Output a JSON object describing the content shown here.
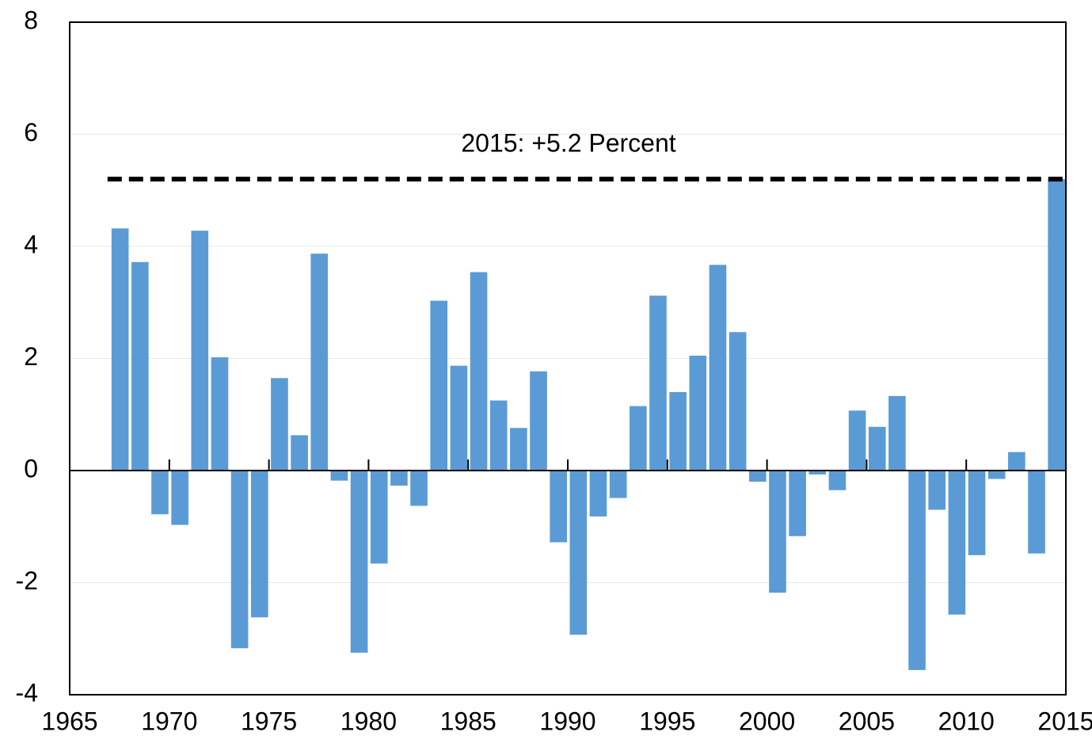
{
  "chart_data": {
    "type": "bar",
    "x": [
      1968,
      1969,
      1970,
      1971,
      1972,
      1973,
      1974,
      1975,
      1976,
      1977,
      1978,
      1979,
      1980,
      1981,
      1982,
      1983,
      1984,
      1985,
      1986,
      1987,
      1988,
      1989,
      1990,
      1991,
      1992,
      1993,
      1994,
      1995,
      1996,
      1997,
      1998,
      1999,
      2000,
      2001,
      2002,
      2003,
      2004,
      2005,
      2006,
      2007,
      2008,
      2009,
      2010,
      2011,
      2012,
      2013,
      2014,
      2015
    ],
    "values": [
      4.32,
      3.72,
      -0.78,
      -0.97,
      4.28,
      2.02,
      -3.17,
      -2.62,
      1.65,
      0.63,
      3.87,
      -0.18,
      -3.25,
      -1.66,
      -0.27,
      -0.63,
      3.03,
      1.87,
      3.54,
      1.25,
      0.76,
      1.77,
      -1.28,
      -2.93,
      -0.82,
      -0.49,
      1.15,
      3.12,
      1.4,
      2.05,
      3.67,
      2.47,
      -0.2,
      -2.18,
      -1.17,
      -0.07,
      -0.35,
      1.07,
      0.78,
      1.33,
      -3.56,
      -0.7,
      -2.57,
      -1.51,
      -0.15,
      0.33,
      -1.48,
      5.2
    ],
    "color": "#5b9bd5",
    "xlim": [
      1965,
      2015
    ],
    "xticks": [
      1965,
      1970,
      1975,
      1980,
      1985,
      1990,
      1995,
      2000,
      2005,
      2010,
      2015
    ],
    "ylim": [
      -4,
      8
    ],
    "yticks": [
      -4,
      -2,
      0,
      2,
      4,
      6,
      8
    ],
    "grid": true,
    "reference_line": {
      "value": 5.2,
      "label": "2015: +5.2 Percent"
    }
  }
}
